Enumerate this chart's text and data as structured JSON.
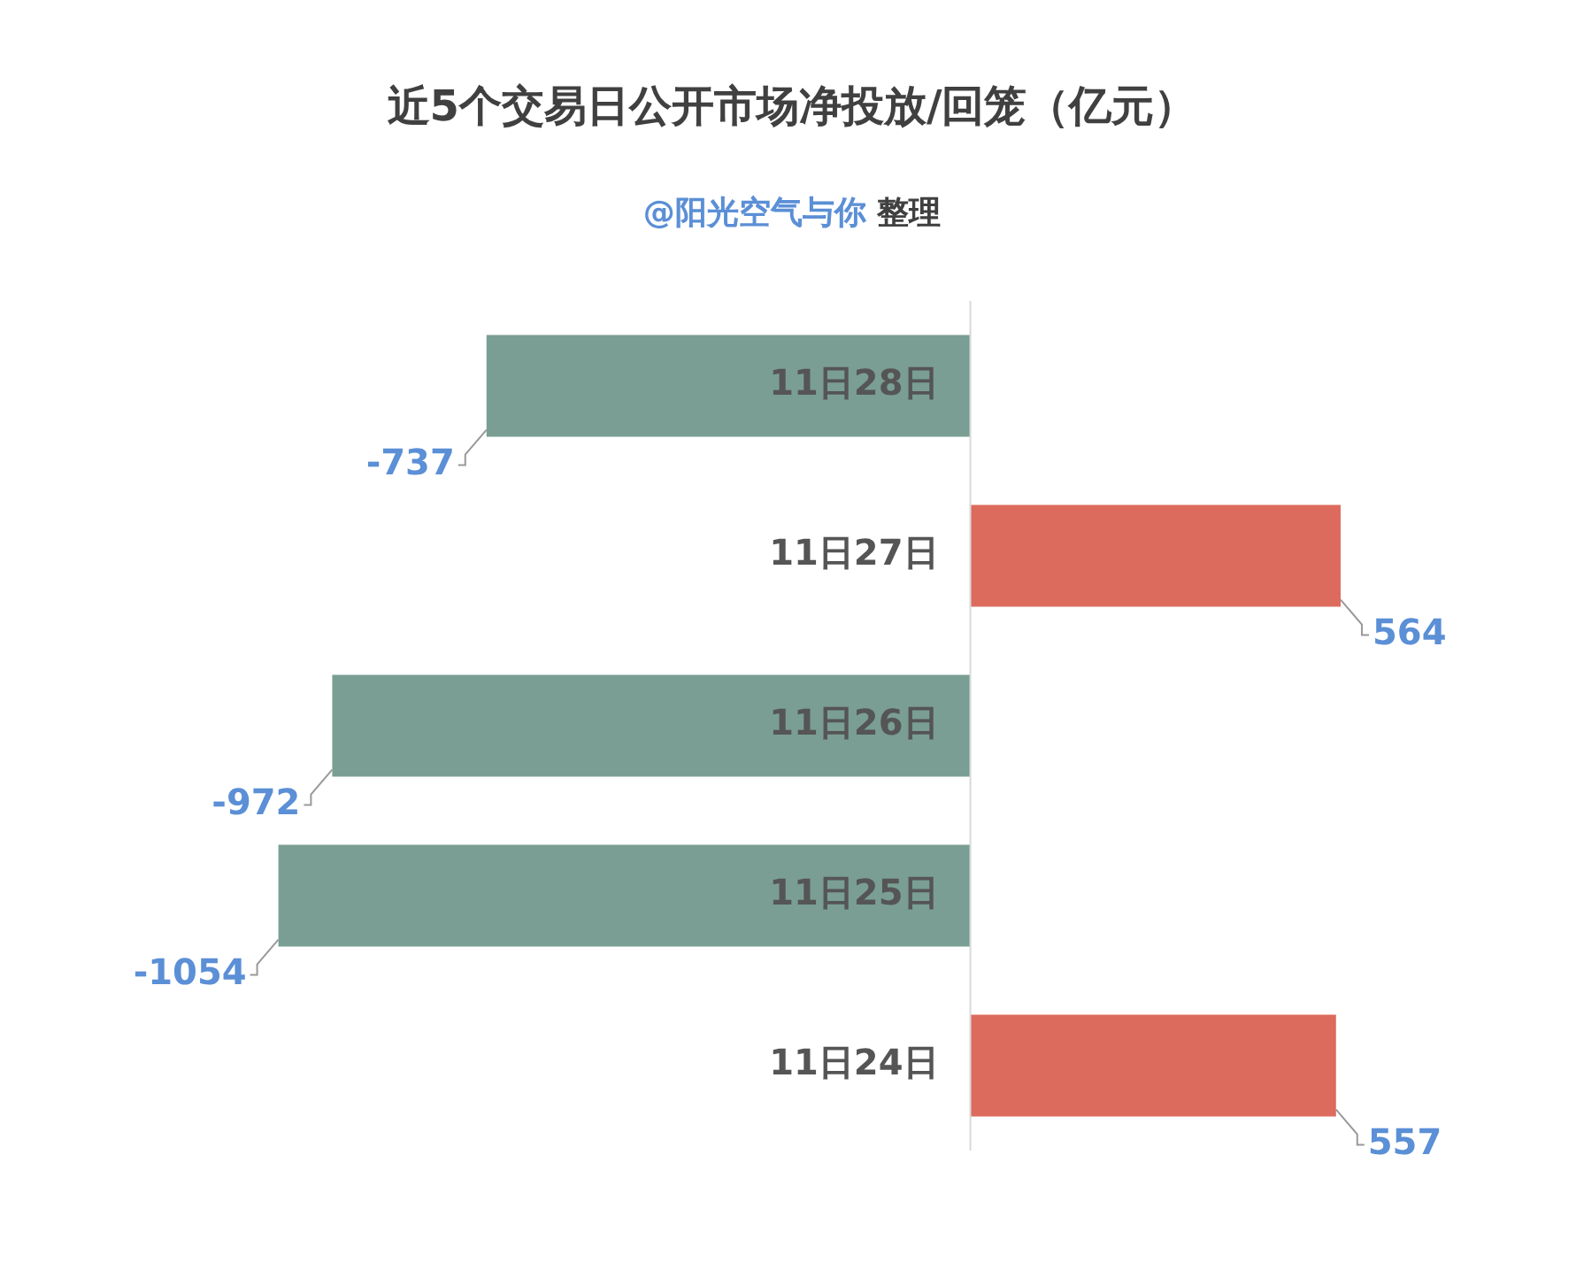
{
  "chart_data": {
    "type": "bar",
    "orientation": "horizontal",
    "title": "近5个交易日公开市场净投放/回笼（亿元）",
    "subtitle": "@阳光空气与你 整理",
    "categories": [
      "11日28日",
      "11日27日",
      "11日26日",
      "11日25日",
      "11日24日"
    ],
    "values": [
      -737,
      564,
      -972,
      -1054,
      557
    ],
    "colors": [
      "#7a9e94",
      "#dc6b5d",
      "#7a9e94",
      "#7a9e94",
      "#dc6b5d"
    ],
    "data_labels": true
  }
}
